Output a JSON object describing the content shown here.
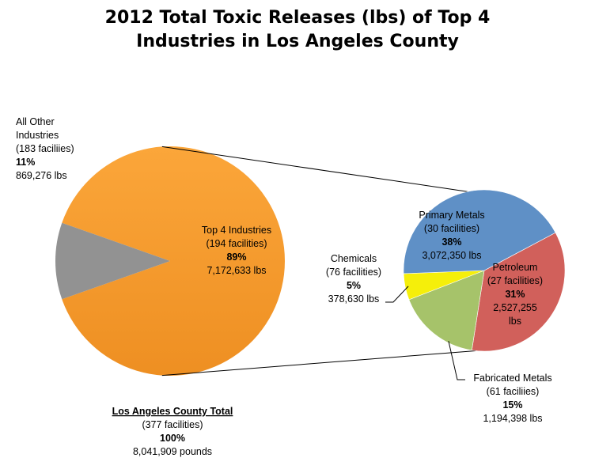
{
  "chart_data": {
    "type": "pie",
    "title_lines": [
      "2012 Total Toxic Releases (lbs) of Top 4",
      "Industries in Los Angeles County"
    ],
    "main_pie": {
      "slices": [
        {
          "key": "top4",
          "value": 7172633,
          "percent": 89,
          "color": "#f6a02c",
          "label_lines": [
            "Top 4 Industries",
            "(194 facilities)",
            "89%",
            "7,172,633 lbs"
          ]
        },
        {
          "key": "other",
          "value": 869276,
          "percent": 11,
          "color": "#929292",
          "label_lines": [
            "All Other",
            "Industries",
            "(183 faciliies)",
            "11%",
            "869,276 lbs"
          ]
        }
      ]
    },
    "breakdown_pie": {
      "slices": [
        {
          "key": "primary",
          "value": 3072350,
          "percent": 38,
          "color": "#5f90c6",
          "label_lines": [
            "Primary Metals",
            "(30 facilities)",
            "38%",
            "3,072,350 lbs"
          ]
        },
        {
          "key": "petroleum",
          "value": 2527255,
          "percent": 31,
          "color": "#d1605b",
          "label_lines": [
            "Petroleum",
            "(27 facilities)",
            "31%",
            "2,527,255",
            "lbs"
          ]
        },
        {
          "key": "fabricated",
          "value": 1194398,
          "percent": 15,
          "color": "#a6c36a",
          "label_lines": [
            "Fabricated Metals",
            "(61 faciliies)",
            "15%",
            "1,194,398 lbs"
          ]
        },
        {
          "key": "chemicals",
          "value": 378630,
          "percent": 5,
          "color": "#f5ef0a",
          "label_lines": [
            "Chemicals",
            "(76 facilities)",
            "5%",
            "378,630 lbs"
          ]
        }
      ]
    },
    "total": {
      "label_lines": [
        "Los Angeles County Total",
        "(377 facilities)",
        "100%",
        "8,041,909 pounds"
      ]
    }
  }
}
